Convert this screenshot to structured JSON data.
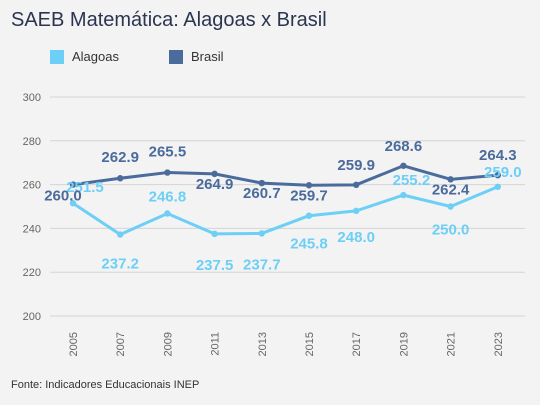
{
  "chart_data": {
    "type": "line",
    "title": "SAEB Matemática: Alagoas x Brasil",
    "x": [
      "2005",
      "2007",
      "2009",
      "2011",
      "2013",
      "2015",
      "2017",
      "2019",
      "2021",
      "2023"
    ],
    "series": [
      {
        "name": "Alagoas",
        "color": "#6dcff6",
        "values": [
          251.5,
          237.2,
          246.8,
          237.5,
          237.7,
          245.8,
          248.0,
          255.2,
          250.0,
          259.0
        ],
        "labels": [
          "251.5",
          "237.2",
          "246.8",
          "237.5",
          "237.7",
          "245.8",
          "248.0",
          "255.2",
          "250.0",
          "259.0"
        ]
      },
      {
        "name": "Brasil",
        "color": "#4a6b9c",
        "values": [
          260.0,
          262.9,
          265.5,
          264.9,
          260.7,
          259.7,
          259.9,
          268.6,
          262.4,
          264.3
        ],
        "labels": [
          "260.0",
          "262.9",
          "265.5",
          "264.9",
          "260.7",
          "259.7",
          "259.9",
          "268.6",
          "262.4",
          "264.3"
        ]
      }
    ],
    "ylim": [
      200,
      300
    ],
    "yticks": [
      "200",
      "220",
      "240",
      "260",
      "280",
      "300"
    ],
    "grid": true,
    "legend": "top-left"
  },
  "source": "Fonte: Indicadores Educacionais INEP"
}
